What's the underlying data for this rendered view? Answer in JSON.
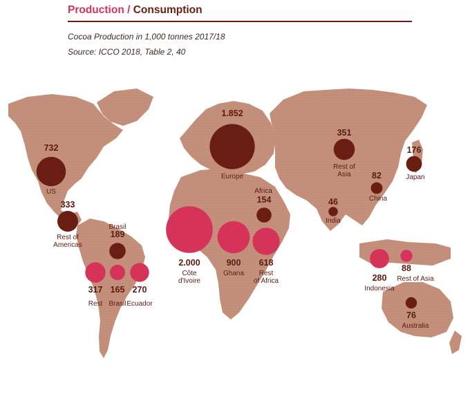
{
  "header": {
    "production": "Production",
    "separator": " / ",
    "consumption": "Consumption"
  },
  "subtitle": {
    "line1": "Cocoa Production in 1,000 tonnes 2017/18",
    "line2": "Source: ICCO 2018, Table 2, 40"
  },
  "colors": {
    "land": "#c4907b",
    "consumption": "#6a1d12",
    "production": "#d6335b",
    "header_production": "#d6335b",
    "header_consumption": "#6a1d12",
    "label": "#5b1a10"
  },
  "chart_data": {
    "type": "bubble-map",
    "series": [
      {
        "name": "Production",
        "points": [
          {
            "value": "2.000",
            "label": "Côte d'Ivoire",
            "amount": 2000
          },
          {
            "value": "900",
            "label": "Ghana",
            "amount": 900
          },
          {
            "value": "618",
            "label": "Rest of Africa",
            "amount": 618
          },
          {
            "value": "280",
            "label": "Indonesia",
            "amount": 280
          },
          {
            "value": "88",
            "label": "Rest of Asia",
            "amount": 88
          },
          {
            "value": "317",
            "label": "Rest",
            "amount": 317
          },
          {
            "value": "165",
            "label": "Brasil",
            "amount": 165
          },
          {
            "value": "270",
            "label": "Ecuador",
            "amount": 270
          }
        ]
      },
      {
        "name": "Consumption",
        "points": [
          {
            "value": "1.852",
            "label": "Europe",
            "amount": 1852
          },
          {
            "value": "732",
            "label": "US",
            "amount": 732
          },
          {
            "value": "351",
            "label": "Rest of Asia",
            "amount": 351
          },
          {
            "value": "333",
            "label": "Rest of Americas",
            "amount": 333
          },
          {
            "value": "189",
            "label": "Brasil",
            "amount": 189
          },
          {
            "value": "176",
            "label": "Japan",
            "amount": 176
          },
          {
            "value": "154",
            "label": "Africa",
            "amount": 154
          },
          {
            "value": "82",
            "label": "China",
            "amount": 82
          },
          {
            "value": "76",
            "label": "Australia",
            "amount": 76
          },
          {
            "value": "46",
            "label": "India",
            "amount": 46
          }
        ]
      }
    ]
  }
}
